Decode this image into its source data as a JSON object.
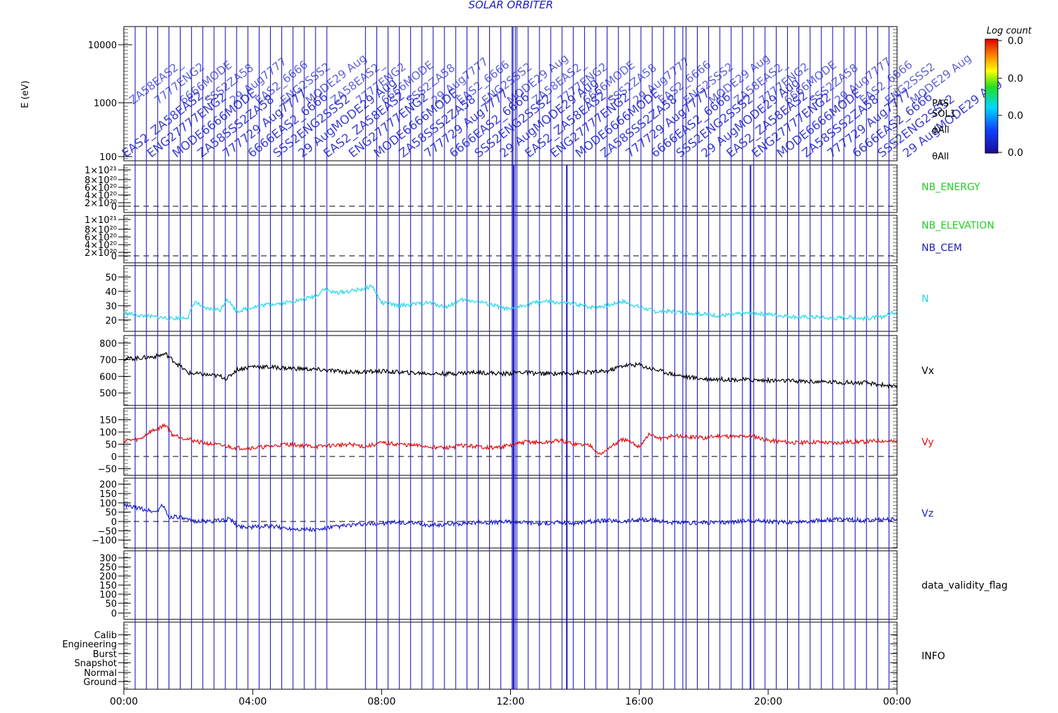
{
  "title": "SOLAR ORBITER",
  "colorbar": {
    "label": "Log count",
    "ticks": [
      "0.0",
      "0.0",
      "0.0",
      "0.0"
    ]
  },
  "spectrogram": {
    "ylabel": "E (eV)",
    "yticks": [
      "10000",
      "1000",
      "100"
    ],
    "right_labels": [
      "PAS",
      "SOL1",
      "ϕAll",
      "θAll"
    ],
    "annotation_fragments": [
      "EAS2_",
      "ENG2",
      "MODE",
      "ZA58",
      "7777",
      "6666",
      "SSS2",
      "29 Aug"
    ]
  },
  "x_axis": {
    "ticks": [
      "00:00",
      "04:00",
      "08:00",
      "12:00",
      "16:00",
      "20:00",
      "00:00"
    ]
  },
  "panels": [
    {
      "id": "nb-energy",
      "label": "NB_ENERGY",
      "label_color": "#22cc22",
      "yticks": [
        "1×10²¹",
        "8×10²⁰",
        "6×10²⁰",
        "4×10²⁰",
        "2×10²⁰",
        "0"
      ]
    },
    {
      "id": "nb-elevation",
      "label": "NB_ELEVATION",
      "label2": "NB_CEM",
      "label_color": "#22cc22",
      "label2_color": "#1c1cb4",
      "yticks": [
        "1×10²¹",
        "8×10²⁰",
        "6×10²⁰",
        "4×10²⁰",
        "2×10²⁰",
        "0"
      ]
    },
    {
      "id": "density",
      "label": "N",
      "label_color": "#22d8e8",
      "yticks": [
        "50",
        "40",
        "30",
        "20"
      ]
    },
    {
      "id": "vx",
      "label": "Vx",
      "label_color": "#000000",
      "yticks": [
        "800",
        "700",
        "600",
        "500"
      ]
    },
    {
      "id": "vy",
      "label": "Vy",
      "label_color": "#dd1111",
      "yticks": [
        "150",
        "100",
        "50",
        "0",
        "−50"
      ]
    },
    {
      "id": "vz",
      "label": "Vz",
      "label_color": "#1c1cc8",
      "yticks": [
        "200",
        "150",
        "100",
        "50",
        "0",
        "−50",
        "−100"
      ]
    },
    {
      "id": "validity",
      "label": "data_validity_flag",
      "label_color": "#000000",
      "yticks": [
        "300",
        "250",
        "200",
        "150",
        "100",
        "50",
        "0"
      ]
    },
    {
      "id": "info",
      "label": "INFO",
      "label_color": "#000000",
      "yticks": [
        "Calib",
        "Engineering",
        "Burst",
        "Snapshot",
        "Normal",
        "Ground"
      ]
    }
  ],
  "chart_data": {
    "type": "line",
    "x_unit": "hours",
    "xlim": [
      0,
      24
    ],
    "mode_switch_marks_hours": [
      0.35,
      0.7,
      1.05,
      1.4,
      1.75,
      2.1,
      2.45,
      2.8,
      3.15,
      3.5,
      3.85,
      4.2,
      4.55,
      4.9,
      5.25,
      5.6,
      5.95,
      6.3,
      7.5,
      7.85,
      8.2,
      8.55,
      8.9,
      9.25,
      9.6,
      9.95,
      10.3,
      10.65,
      11.0,
      11.35,
      11.7,
      12.05,
      12.08,
      12.15,
      12.2,
      12.55,
      12.9,
      13.25,
      13.6,
      13.95,
      14.3,
      14.65,
      15.0,
      15.35,
      15.7,
      16.05,
      16.4,
      16.75,
      17.1,
      17.35,
      17.45,
      17.8,
      18.15,
      18.5,
      18.85,
      19.2,
      19.55,
      19.9,
      20.25,
      20.6,
      20.95,
      21.3,
      21.65,
      22.0,
      22.35,
      22.7,
      23.05,
      23.4,
      23.75
    ],
    "series": [
      {
        "name": "N",
        "ylim": [
          15,
          55
        ],
        "color": "#22d8e8",
        "x": [
          0,
          0.5,
          1,
          1.5,
          2,
          2.2,
          2.5,
          3,
          3.2,
          3.5,
          4,
          4.5,
          5,
          5.5,
          6,
          6.2,
          6.5,
          7,
          7.5,
          7.7,
          8,
          8.5,
          9,
          9.5,
          10,
          10.5,
          11,
          11.5,
          12,
          12.5,
          13,
          13.5,
          14,
          14.5,
          15,
          15.5,
          16,
          16.5,
          17,
          17.5,
          18,
          18.5,
          19,
          19.5,
          20,
          20.5,
          21,
          21.5,
          22,
          22.5,
          23,
          23.5,
          24
        ],
        "y": [
          25,
          23,
          22,
          21,
          22,
          33,
          28,
          27,
          35,
          26,
          29,
          31,
          32,
          34,
          37,
          42,
          39,
          40,
          42,
          44,
          32,
          30,
          31,
          32,
          29,
          34,
          33,
          30,
          27,
          31,
          33,
          32,
          31,
          29,
          30,
          33,
          29,
          26,
          26,
          25,
          24,
          23,
          24,
          25,
          24,
          23,
          22,
          22,
          21,
          22,
          21,
          22,
          26
        ]
      },
      {
        "name": "Vx",
        "ylim": [
          450,
          820
        ],
        "color": "#000000",
        "x": [
          0,
          0.5,
          1,
          1.3,
          1.5,
          2,
          2.5,
          3,
          3.2,
          3.5,
          4,
          4.5,
          5,
          5.5,
          6,
          7,
          8,
          9,
          10,
          11,
          11.8,
          12.3,
          13,
          14,
          15,
          15.5,
          16,
          16.2,
          16.5,
          17,
          17.5,
          18,
          19,
          20,
          21,
          22,
          23,
          23.7,
          24
        ],
        "y": [
          705,
          710,
          720,
          735,
          700,
          620,
          610,
          600,
          585,
          640,
          660,
          655,
          650,
          645,
          640,
          625,
          630,
          620,
          615,
          625,
          615,
          625,
          615,
          620,
          630,
          665,
          670,
          655,
          640,
          615,
          595,
          585,
          580,
          575,
          570,
          565,
          560,
          545,
          530
        ]
      },
      {
        "name": "Vy",
        "ylim": [
          -60,
          180
        ],
        "color": "#dd1111",
        "x": [
          0,
          0.5,
          0.8,
          1,
          1.3,
          1.5,
          2,
          2.5,
          3,
          3.5,
          4,
          4.5,
          5,
          5.5,
          6,
          6.5,
          7,
          7.5,
          8,
          8.5,
          9,
          9.5,
          10,
          10.5,
          11,
          11.5,
          12,
          12.5,
          13,
          13.5,
          14,
          14.5,
          14.8,
          15,
          15.5,
          16,
          16.3,
          16.7,
          17,
          17.5,
          18,
          18.5,
          19,
          19.5,
          20,
          20.5,
          21,
          21.5,
          22,
          22.5,
          23,
          23.5,
          24
        ],
        "y": [
          65,
          70,
          100,
          110,
          130,
          90,
          70,
          55,
          45,
          35,
          35,
          40,
          50,
          45,
          40,
          45,
          50,
          40,
          55,
          50,
          45,
          40,
          35,
          45,
          40,
          35,
          45,
          60,
          55,
          65,
          50,
          45,
          5,
          30,
          70,
          40,
          90,
          70,
          85,
          80,
          75,
          85,
          80,
          85,
          65,
          60,
          55,
          60,
          55,
          60,
          60,
          65,
          60
        ]
      },
      {
        "name": "Vz",
        "ylim": [
          -120,
          210
        ],
        "color": "#1c1cc8",
        "x": [
          0,
          0.5,
          1,
          1.2,
          1.4,
          1.6,
          2,
          2.5,
          3,
          3.3,
          3.5,
          4,
          4.5,
          5,
          5.5,
          6,
          6.5,
          7,
          7.5,
          8,
          8.5,
          9,
          9.5,
          10,
          10.5,
          11,
          11.5,
          12,
          12.5,
          13,
          13.5,
          14,
          14.5,
          15,
          15.5,
          16,
          16.5,
          17,
          17.5,
          18,
          18.5,
          19,
          19.5,
          20,
          20.5,
          21,
          21.5,
          22,
          22.5,
          23,
          23.5,
          24
        ],
        "y": [
          85,
          70,
          50,
          90,
          20,
          30,
          5,
          0,
          5,
          15,
          -25,
          -30,
          -25,
          -35,
          -40,
          -45,
          -30,
          -20,
          -15,
          -10,
          -5,
          -10,
          -20,
          -15,
          -10,
          -5,
          -5,
          0,
          -5,
          -10,
          -5,
          -10,
          0,
          5,
          0,
          10,
          5,
          -5,
          -10,
          -5,
          -5,
          0,
          5,
          0,
          -5,
          0,
          5,
          10,
          10,
          5,
          10,
          10
        ]
      }
    ]
  }
}
